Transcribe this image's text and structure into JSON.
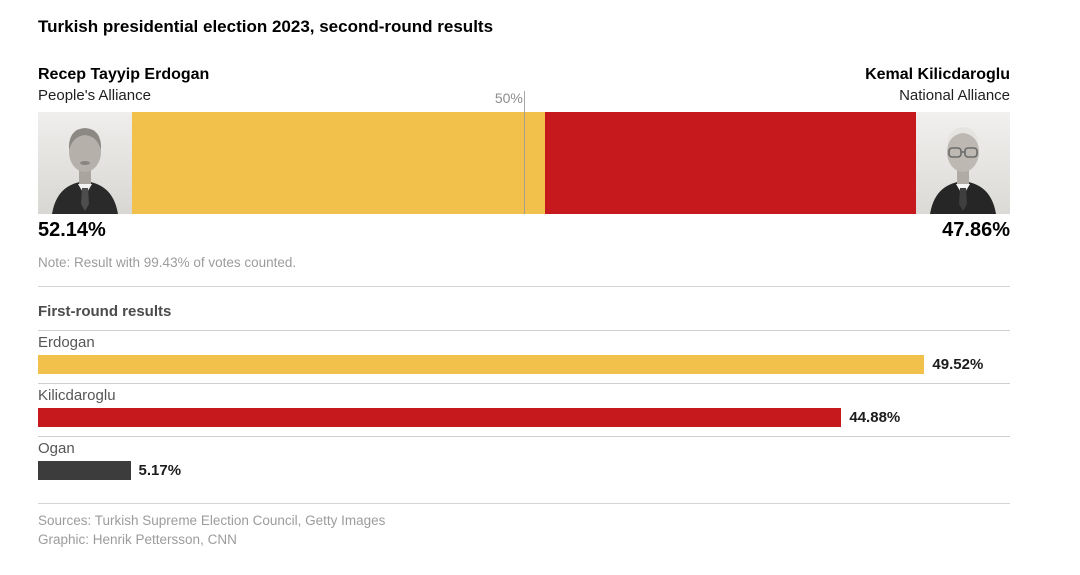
{
  "title": "Turkish presidential election 2023, second-round results",
  "colors": {
    "alliance_yellow": "#F2C14B",
    "alliance_red": "#C5191D",
    "ogan_gray": "#3C3C3C"
  },
  "second_round": {
    "marker_label": "50%",
    "left": {
      "name": "Recep Tayyip Erdogan",
      "party": "People's Alliance",
      "value": 52.14,
      "value_label": "52.14%"
    },
    "right": {
      "name": "Kemal Kilicdaroglu",
      "party": "National Alliance",
      "value": 47.86,
      "value_label": "47.86%"
    },
    "note": "Note: Result with 99.43% of votes counted."
  },
  "first_round": {
    "heading": "First-round results",
    "bars": [
      {
        "label": "Erdogan",
        "value": 49.52,
        "value_label": "49.52%"
      },
      {
        "label": "Kilicdaroglu",
        "value": 44.88,
        "value_label": "44.88%"
      },
      {
        "label": "Ogan",
        "value": 5.17,
        "value_label": "5.17%"
      }
    ]
  },
  "footer": {
    "sources": "Sources: Turkish Supreme Election Council, Getty Images",
    "credit": "Graphic: Henrik Pettersson, CNN"
  },
  "chart_data": [
    {
      "type": "bar",
      "orientation": "horizontal-stacked",
      "title": "Turkish presidential election 2023, second-round results",
      "categories": [
        "Recep Tayyip Erdogan (People's Alliance)",
        "Kemal Kilicdaroglu (National Alliance)"
      ],
      "values": [
        52.14,
        47.86
      ],
      "xlim": [
        0,
        100
      ],
      "annotations": [
        "50% reference line",
        "Note: Result with 99.43% of votes counted."
      ]
    },
    {
      "type": "bar",
      "orientation": "horizontal",
      "title": "First-round results",
      "categories": [
        "Erdogan",
        "Kilicdaroglu",
        "Ogan"
      ],
      "values": [
        49.52,
        44.88,
        5.17
      ],
      "xlim": [
        0,
        54.3
      ],
      "grid": false,
      "legend": "none"
    }
  ]
}
